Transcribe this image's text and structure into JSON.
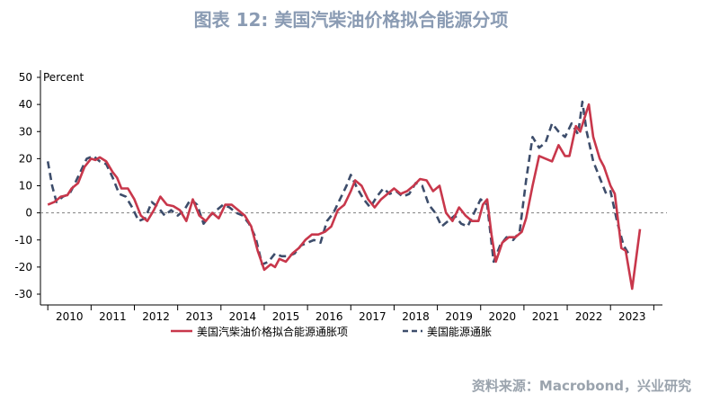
{
  "title": "图表 12: 美国汽柴油价格拟合能源分项",
  "source": "资料来源：Macrobond，兴业研究",
  "colors": {
    "fit": "#c8374b",
    "energy": "#3d4d6b",
    "zero": "#808080",
    "title": "#8a9bb3"
  },
  "chart_data": {
    "type": "line",
    "ylabel": "Percent",
    "ylim": [
      -30,
      50
    ],
    "yticks": [
      50,
      40,
      30,
      20,
      10,
      0,
      -10,
      -20,
      -30
    ],
    "xlim": [
      2009.83,
      2024.2
    ],
    "xticks": [
      "2010",
      "2011",
      "2012",
      "2013",
      "2014",
      "2015",
      "2016",
      "2017",
      "2018",
      "2019",
      "2020",
      "2021",
      "2022",
      "2023"
    ],
    "grid": false,
    "zero_line": "dashed",
    "legend": "bottom",
    "series": [
      {
        "name": "美国汽柴油价格拟合能源通胀项",
        "style": "solid",
        "points": [
          [
            2010.0,
            3
          ],
          [
            2010.15,
            4
          ],
          [
            2010.3,
            6
          ],
          [
            2010.45,
            6.5
          ],
          [
            2010.55,
            9
          ],
          [
            2010.7,
            11
          ],
          [
            2010.85,
            17
          ],
          [
            2011.0,
            20
          ],
          [
            2011.1,
            19.5
          ],
          [
            2011.2,
            20.5
          ],
          [
            2011.35,
            19
          ],
          [
            2011.5,
            15
          ],
          [
            2011.6,
            13
          ],
          [
            2011.7,
            9
          ],
          [
            2011.85,
            9
          ],
          [
            2012.0,
            5
          ],
          [
            2012.15,
            -1
          ],
          [
            2012.3,
            -3
          ],
          [
            2012.45,
            1
          ],
          [
            2012.6,
            6
          ],
          [
            2012.75,
            3
          ],
          [
            2012.9,
            2.5
          ],
          [
            2013.05,
            1
          ],
          [
            2013.2,
            -3
          ],
          [
            2013.35,
            5
          ],
          [
            2013.5,
            -1
          ],
          [
            2013.65,
            -3
          ],
          [
            2013.8,
            0
          ],
          [
            2013.95,
            -2
          ],
          [
            2014.1,
            3
          ],
          [
            2014.25,
            3
          ],
          [
            2014.4,
            1
          ],
          [
            2014.55,
            -1
          ],
          [
            2014.7,
            -5
          ],
          [
            2014.85,
            -14
          ],
          [
            2015.0,
            -21
          ],
          [
            2015.15,
            -19
          ],
          [
            2015.25,
            -20
          ],
          [
            2015.35,
            -17
          ],
          [
            2015.5,
            -18
          ],
          [
            2015.65,
            -15
          ],
          [
            2015.8,
            -13
          ],
          [
            2015.95,
            -10
          ],
          [
            2016.1,
            -8
          ],
          [
            2016.25,
            -8
          ],
          [
            2016.4,
            -7
          ],
          [
            2016.55,
            -5
          ],
          [
            2016.7,
            1
          ],
          [
            2016.85,
            3
          ],
          [
            2017.0,
            8
          ],
          [
            2017.1,
            12
          ],
          [
            2017.25,
            10
          ],
          [
            2017.4,
            5
          ],
          [
            2017.55,
            2
          ],
          [
            2017.7,
            5
          ],
          [
            2017.85,
            7
          ],
          [
            2018.0,
            9
          ],
          [
            2018.15,
            7
          ],
          [
            2018.3,
            8
          ],
          [
            2018.45,
            10
          ],
          [
            2018.6,
            12.5
          ],
          [
            2018.75,
            12
          ],
          [
            2018.9,
            8
          ],
          [
            2019.05,
            10
          ],
          [
            2019.2,
            0
          ],
          [
            2019.35,
            -3
          ],
          [
            2019.5,
            2
          ],
          [
            2019.65,
            -1
          ],
          [
            2019.8,
            -3
          ],
          [
            2019.95,
            -3
          ],
          [
            2020.05,
            3
          ],
          [
            2020.15,
            5
          ],
          [
            2020.25,
            -8
          ],
          [
            2020.35,
            -18
          ],
          [
            2020.5,
            -11
          ],
          [
            2020.65,
            -9
          ],
          [
            2020.8,
            -9
          ],
          [
            2020.95,
            -7
          ],
          [
            2021.05,
            -2
          ],
          [
            2021.2,
            10
          ],
          [
            2021.35,
            21
          ],
          [
            2021.5,
            20
          ],
          [
            2021.65,
            19
          ],
          [
            2021.8,
            25
          ],
          [
            2021.95,
            21
          ],
          [
            2022.05,
            21
          ],
          [
            2022.2,
            32
          ],
          [
            2022.3,
            30
          ],
          [
            2022.4,
            35
          ],
          [
            2022.5,
            40
          ],
          [
            2022.6,
            28
          ],
          [
            2022.75,
            20
          ],
          [
            2022.85,
            17
          ],
          [
            2023.0,
            10
          ],
          [
            2023.1,
            7
          ],
          [
            2023.25,
            -13
          ],
          [
            2023.35,
            -14
          ],
          [
            2023.5,
            -28
          ],
          [
            2023.68,
            -6
          ]
        ]
      },
      {
        "name": "美国能源通胀",
        "style": "dashed",
        "points": [
          [
            2010.0,
            19
          ],
          [
            2010.1,
            10
          ],
          [
            2010.2,
            4
          ],
          [
            2010.35,
            6
          ],
          [
            2010.5,
            7
          ],
          [
            2010.6,
            10
          ],
          [
            2010.75,
            15
          ],
          [
            2010.9,
            20
          ],
          [
            2011.05,
            21
          ],
          [
            2011.2,
            19
          ],
          [
            2011.35,
            18
          ],
          [
            2011.5,
            13
          ],
          [
            2011.65,
            7
          ],
          [
            2011.8,
            6
          ],
          [
            2011.95,
            2
          ],
          [
            2012.1,
            -3
          ],
          [
            2012.25,
            -2
          ],
          [
            2012.4,
            4
          ],
          [
            2012.55,
            2
          ],
          [
            2012.7,
            -1
          ],
          [
            2012.85,
            1
          ],
          [
            2013.0,
            -1
          ],
          [
            2013.15,
            1
          ],
          [
            2013.3,
            5
          ],
          [
            2013.45,
            3
          ],
          [
            2013.6,
            -4
          ],
          [
            2013.75,
            -1
          ],
          [
            2013.9,
            1
          ],
          [
            2014.05,
            3
          ],
          [
            2014.2,
            2
          ],
          [
            2014.35,
            0
          ],
          [
            2014.5,
            -1
          ],
          [
            2014.65,
            -4
          ],
          [
            2014.8,
            -9
          ],
          [
            2014.95,
            -19
          ],
          [
            2015.1,
            -18
          ],
          [
            2015.25,
            -15
          ],
          [
            2015.4,
            -16
          ],
          [
            2015.55,
            -16
          ],
          [
            2015.7,
            -15
          ],
          [
            2015.85,
            -12
          ],
          [
            2016.0,
            -11
          ],
          [
            2016.15,
            -10
          ],
          [
            2016.3,
            -11
          ],
          [
            2016.45,
            -3
          ],
          [
            2016.6,
            0
          ],
          [
            2016.75,
            5
          ],
          [
            2016.9,
            10
          ],
          [
            2017.0,
            14
          ],
          [
            2017.15,
            9
          ],
          [
            2017.3,
            5
          ],
          [
            2017.45,
            2
          ],
          [
            2017.6,
            6
          ],
          [
            2017.75,
            9
          ],
          [
            2017.9,
            7
          ],
          [
            2018.05,
            8
          ],
          [
            2018.2,
            6
          ],
          [
            2018.35,
            7
          ],
          [
            2018.5,
            11
          ],
          [
            2018.65,
            10
          ],
          [
            2018.8,
            3
          ],
          [
            2018.95,
            0
          ],
          [
            2019.1,
            -5
          ],
          [
            2019.25,
            -3
          ],
          [
            2019.4,
            -1
          ],
          [
            2019.55,
            -4
          ],
          [
            2019.7,
            -5
          ],
          [
            2019.85,
            0
          ],
          [
            2020.0,
            5
          ],
          [
            2020.15,
            3
          ],
          [
            2020.3,
            -18
          ],
          [
            2020.45,
            -12
          ],
          [
            2020.6,
            -9
          ],
          [
            2020.75,
            -10
          ],
          [
            2020.9,
            -7
          ],
          [
            2021.05,
            12
          ],
          [
            2021.2,
            28
          ],
          [
            2021.35,
            24
          ],
          [
            2021.5,
            26
          ],
          [
            2021.65,
            33
          ],
          [
            2021.8,
            30
          ],
          [
            2021.95,
            28
          ],
          [
            2022.1,
            33
          ],
          [
            2022.25,
            29
          ],
          [
            2022.35,
            41
          ],
          [
            2022.45,
            30
          ],
          [
            2022.6,
            19
          ],
          [
            2022.75,
            13
          ],
          [
            2022.9,
            7
          ],
          [
            2023.0,
            8
          ],
          [
            2023.15,
            -3
          ],
          [
            2023.3,
            -12
          ],
          [
            2023.45,
            -16
          ]
        ]
      }
    ]
  }
}
